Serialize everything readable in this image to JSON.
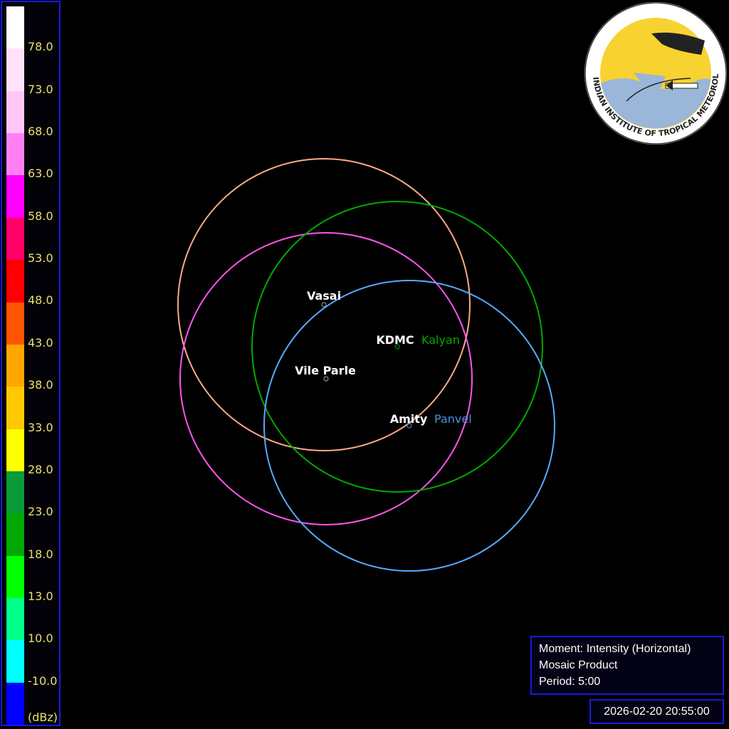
{
  "legend": {
    "unit": "(dBz)",
    "labels": [
      "78.0",
      "73.0",
      "68.0",
      "63.0",
      "58.0",
      "53.0",
      "48.0",
      "43.0",
      "38.0",
      "33.0",
      "28.0",
      "23.0",
      "18.0",
      "13.0",
      "10.0",
      "-10.0"
    ],
    "colors": [
      "#ffffff",
      "#ffe2fa",
      "#ffc6f6",
      "#ff80f4",
      "#ff00ff",
      "#ff0066",
      "#ff0000",
      "#ff5500",
      "#ffa500",
      "#ffc800",
      "#ffff00",
      "#0a9a3a",
      "#00aa00",
      "#00ff00",
      "#00ff88",
      "#00ffff",
      "#0000ff"
    ]
  },
  "radars": [
    {
      "name": "Vasai",
      "color": "#ffaa88"
    },
    {
      "name": "Vile Parle",
      "color": "#ff55ee"
    },
    {
      "name": "KDMC",
      "color": "#00aa00"
    },
    {
      "name": "Amity",
      "color": "#55aaff"
    }
  ],
  "hidden_labels": [
    {
      "name": "Kalyan",
      "color": "#00aa00"
    },
    {
      "name": "Panvel",
      "color": "#4a90e0"
    }
  ],
  "info": {
    "moment": "Moment: Intensity (Horizontal)",
    "product": "Mosaic Product",
    "period": "Period: 5:00"
  },
  "timestamp": "2026-02-20 20:55:00",
  "logo": {
    "text": "INDIAN INSTITUTE OF TROPICAL METEOROLOGY PUNE"
  }
}
